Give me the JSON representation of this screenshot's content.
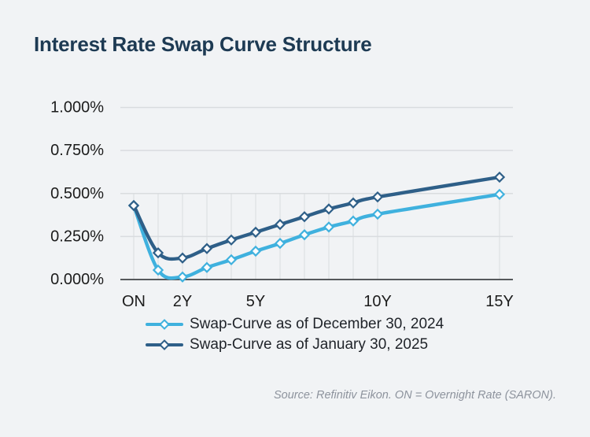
{
  "title": "Interest Rate Swap Curve Structure",
  "source_note": "Source: Refinitiv Eikon. ON = Overnight Rate (SARON).",
  "colors": {
    "background": "#f1f3f5",
    "title_text": "#1d3a53",
    "tick_text": "#1c1c1c",
    "grid_line": "#d9dcdf",
    "axis_line": "#404346",
    "marker_fill": "#fbfcfd",
    "source_text": "#8d939d",
    "series_dec_2024": "#3fb1de",
    "series_jan_2025": "#2e5f88"
  },
  "chart_data": {
    "type": "line",
    "title": "Interest Rate Swap Curve Structure",
    "xlabel": "",
    "ylabel": "",
    "x_years": [
      0,
      1,
      2,
      3,
      4,
      5,
      6,
      7,
      8,
      9,
      10,
      15
    ],
    "x_axis": {
      "ticks": [
        {
          "year": 0,
          "label": "ON"
        },
        {
          "year": 2,
          "label": "2Y"
        },
        {
          "year": 5,
          "label": "5Y"
        },
        {
          "year": 10,
          "label": "10Y"
        },
        {
          "year": 15,
          "label": "15Y"
        }
      ]
    },
    "y_axis": {
      "ticks": [
        {
          "value": 1.0,
          "label": "1.000%"
        },
        {
          "value": 0.75,
          "label": "0.750%"
        },
        {
          "value": 0.5,
          "label": "0.500%"
        },
        {
          "value": 0.25,
          "label": "0.250%"
        },
        {
          "value": 0.0,
          "label": "0.000%"
        }
      ]
    },
    "ylim": [
      0.0,
      1.0
    ],
    "grid": true,
    "legend_position": "bottom",
    "marker": "diamond",
    "series": [
      {
        "name": "Swap-Curve as of December 30, 2024",
        "color": "#3fb1de",
        "values": [
          0.43,
          0.055,
          0.015,
          0.07,
          0.115,
          0.165,
          0.21,
          0.26,
          0.305,
          0.34,
          0.38,
          0.495
        ]
      },
      {
        "name": "Swap-Curve as of January 30, 2025",
        "color": "#2e5f88",
        "values": [
          0.43,
          0.155,
          0.125,
          0.18,
          0.23,
          0.275,
          0.32,
          0.365,
          0.41,
          0.445,
          0.48,
          0.595
        ]
      }
    ]
  }
}
